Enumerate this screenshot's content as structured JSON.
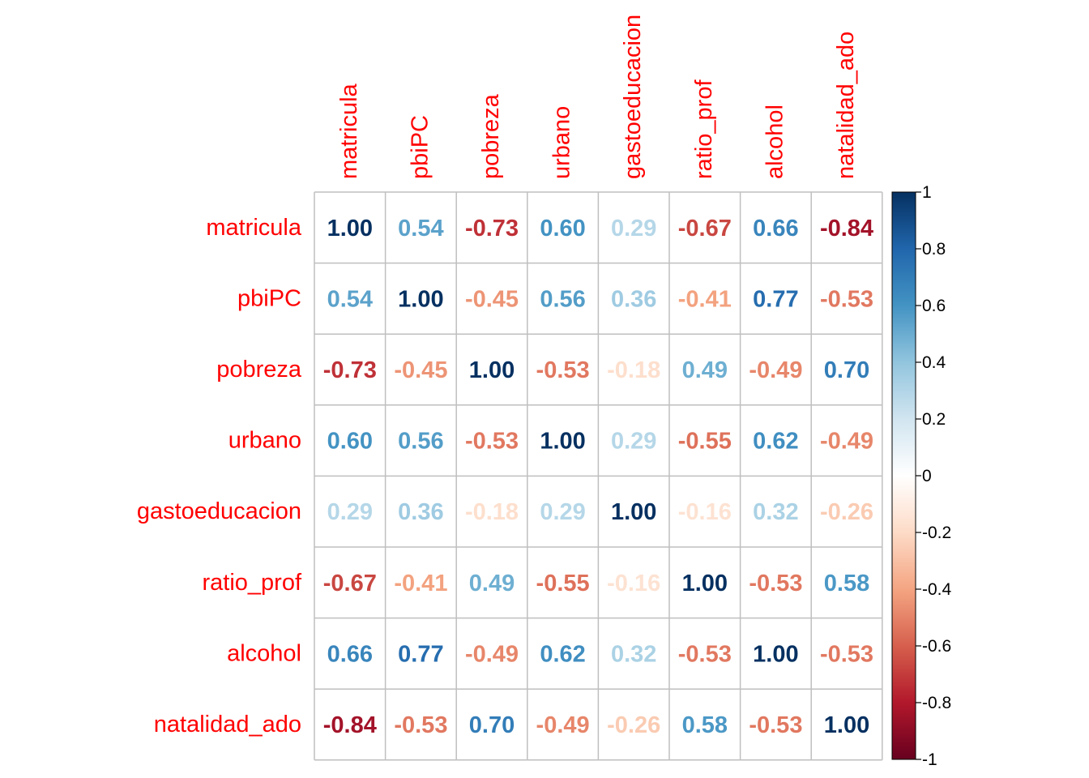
{
  "chart_data": {
    "type": "heatmap",
    "variables": [
      "matricula",
      "pbiPC",
      "pobreza",
      "urbano",
      "gastoeducacion",
      "ratio_prof",
      "alcohol",
      "natalidad_ado"
    ],
    "matrix": [
      [
        1.0,
        0.54,
        -0.73,
        0.6,
        0.29,
        -0.67,
        0.66,
        -0.84
      ],
      [
        0.54,
        1.0,
        -0.45,
        0.56,
        0.36,
        -0.41,
        0.77,
        -0.53
      ],
      [
        -0.73,
        -0.45,
        1.0,
        -0.53,
        -0.18,
        0.49,
        -0.49,
        0.7
      ],
      [
        0.6,
        0.56,
        -0.53,
        1.0,
        0.29,
        -0.55,
        0.62,
        -0.49
      ],
      [
        0.29,
        0.36,
        -0.18,
        0.29,
        1.0,
        -0.16,
        0.32,
        -0.26
      ],
      [
        -0.67,
        -0.41,
        0.49,
        -0.55,
        -0.16,
        1.0,
        -0.53,
        0.58
      ],
      [
        0.66,
        0.77,
        -0.49,
        0.62,
        0.32,
        -0.53,
        1.0,
        -0.53
      ],
      [
        -0.84,
        -0.53,
        0.7,
        -0.49,
        -0.26,
        0.58,
        -0.53,
        1.0
      ]
    ],
    "colorbar": {
      "range": [
        -1,
        1
      ],
      "ticks": [
        "1",
        "0.8",
        "0.6",
        "0.4",
        "0.2",
        "0",
        "-0.2",
        "-0.4",
        "-0.6",
        "-0.8",
        "-1"
      ],
      "tick_values": [
        1,
        0.8,
        0.6,
        0.4,
        0.2,
        0,
        -0.2,
        -0.4,
        -0.6,
        -0.8,
        -1
      ],
      "palette": [
        "#67001F",
        "#B2182B",
        "#D6604D",
        "#F4A582",
        "#FDDBC7",
        "#FFFFFF",
        "#D1E5F0",
        "#92C5DE",
        "#4393C3",
        "#2166AC",
        "#053061"
      ]
    },
    "label_color": "#ff0000",
    "grid_color": "#bfbfbf",
    "grid": true
  }
}
